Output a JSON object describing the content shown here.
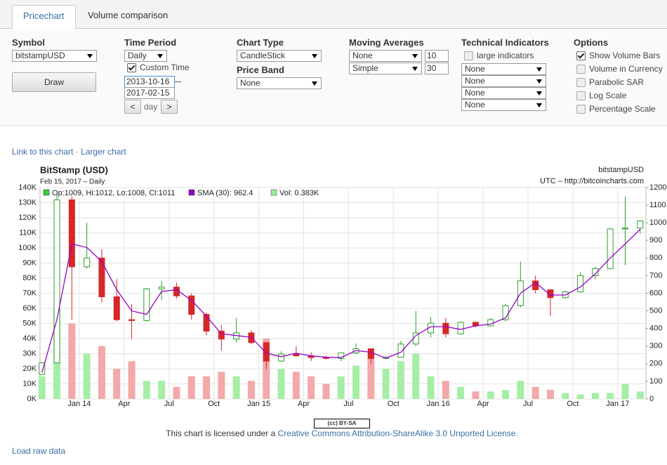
{
  "tabs": [
    "Pricechart",
    "Volume comparison"
  ],
  "form": {
    "symbol": {
      "label": "Symbol",
      "value": "bitstampUSD",
      "button": "Draw"
    },
    "time_period": {
      "label": "Time Period",
      "value": "Daily",
      "custom_time": {
        "label": "Custom Time",
        "checked": true
      },
      "start": "2013-10-16",
      "end": "2017-02-15",
      "step_prev": "<",
      "step_unit": "day",
      "step_next": ">"
    },
    "chart_type": {
      "label": "Chart Type",
      "value": "CandleStick",
      "price_band_label": "Price Band",
      "price_band": "None"
    },
    "moving_averages": {
      "label": "Moving Averages",
      "rows": [
        [
          "None",
          "10"
        ],
        [
          "Simple",
          "30"
        ]
      ]
    },
    "technical_indicators": {
      "label": "Technical Indicators",
      "large": {
        "label": "large indicators",
        "checked": false
      },
      "selects": [
        "None",
        "None",
        "None",
        "None"
      ]
    },
    "options": {
      "label": "Options",
      "items": [
        {
          "label": "Show Volume Bars",
          "checked": true
        },
        {
          "label": "Volume in Currency",
          "checked": false
        },
        {
          "label": "Parabolic SAR",
          "checked": false
        },
        {
          "label": "Log Scale",
          "checked": false
        },
        {
          "label": "Percentage Scale",
          "checked": false
        }
      ]
    }
  },
  "links": [
    "Link to this chart",
    "·",
    "Larger chart"
  ],
  "chart_data": {
    "type": "candlestick",
    "title": "BitStamp (USD)",
    "subtitle": "Feb 15, 2017 – Daily",
    "right_title": "bitstampUSD",
    "right_subtitle": "UTC – http://bitcoincharts.com",
    "legend": [
      {
        "label": "Op:1009, Hi:1012, Lo:1008, Cl:1011",
        "color": "#33cc33"
      },
      {
        "label": "SMA (30): 962.4",
        "color": "#9900cc"
      },
      {
        "label": "Vol: 0.383K",
        "color": "#99ee99"
      }
    ],
    "grid": true,
    "categories": [
      null,
      null,
      null,
      "Jan 14",
      null,
      null,
      "Apr",
      null,
      null,
      "Jul",
      null,
      null,
      "Oct",
      null,
      null,
      "Jan 15",
      null,
      null,
      "Apr",
      null,
      null,
      "Jul",
      null,
      null,
      "Oct",
      null,
      null,
      "Jan 16",
      null,
      null,
      "Apr",
      null,
      null,
      "Jul",
      null,
      null,
      "Oct",
      null,
      null,
      "Jan 17",
      null
    ],
    "price": {
      "axis": "y2",
      "up_color": "#2ca02c",
      "down_color": "#d62728",
      "open": [
        140,
        205,
        1130,
        750,
        800,
        580,
        450,
        445,
        625,
        635,
        585,
        480,
        385,
        340,
        375,
        320,
        215,
        255,
        245,
        235,
        230,
        262,
        285,
        230,
        236,
        312,
        375,
        430,
        370,
        435,
        415,
        450,
        530,
        670,
        620,
        575,
        608,
        700,
        740,
        965,
        970
      ],
      "high": [
        210,
        1163,
        1150,
        1000,
        850,
        680,
        540,
        630,
        670,
        660,
        600,
        490,
        420,
        460,
        390,
        320,
        270,
        300,
        265,
        245,
        265,
        315,
        285,
        245,
        330,
        500,
        465,
        460,
        440,
        440,
        460,
        540,
        780,
        700,
        620,
        615,
        720,
        750,
        970,
        1150,
        1015
      ],
      "low": [
        135,
        205,
        450,
        740,
        550,
        440,
        340,
        440,
        560,
        570,
        450,
        360,
        275,
        320,
        310,
        170,
        210,
        240,
        215,
        225,
        215,
        255,
        200,
        225,
        235,
        300,
        350,
        350,
        365,
        405,
        410,
        440,
        520,
        600,
        470,
        570,
        605,
        680,
        740,
        760,
        940
      ],
      "close": [
        205,
        1130,
        750,
        800,
        580,
        450,
        445,
        625,
        635,
        585,
        480,
        385,
        340,
        375,
        320,
        215,
        255,
        245,
        235,
        230,
        262,
        285,
        230,
        236,
        312,
        375,
        430,
        370,
        435,
        415,
        450,
        530,
        670,
        620,
        575,
        608,
        700,
        740,
        965,
        970,
        1011
      ]
    },
    "sma": {
      "axis": "y2",
      "color": "#9900cc",
      "values": [
        150,
        450,
        880,
        860,
        780,
        620,
        500,
        480,
        610,
        620,
        560,
        470,
        370,
        360,
        350,
        260,
        240,
        260,
        245,
        237,
        235,
        275,
        265,
        232,
        265,
        360,
        410,
        410,
        395,
        415,
        425,
        460,
        600,
        660,
        590,
        590,
        635,
        710,
        800,
        880,
        962.4
      ]
    },
    "volume": {
      "up_color": "#a6eea6",
      "down_color": "#f4a8a8",
      "values": [
        15000,
        60000,
        50000,
        30000,
        35000,
        20000,
        25000,
        12000,
        12000,
        8000,
        15000,
        15000,
        18000,
        15000,
        12000,
        40000,
        20000,
        18000,
        15000,
        10000,
        15000,
        22000,
        30000,
        20000,
        25000,
        30000,
        15000,
        12000,
        8000,
        5000,
        5000,
        6000,
        12000,
        8000,
        6000,
        4000,
        3000,
        4000,
        4000,
        10000,
        5000
      ]
    },
    "ylim": [
      0,
      140000
    ],
    "yticks": [
      {
        "value": 0,
        "label": "0K"
      },
      {
        "value": 10000,
        "label": "10K"
      },
      {
        "value": 20000,
        "label": "20K"
      },
      {
        "value": 30000,
        "label": "30K"
      },
      {
        "value": 40000,
        "label": "40K"
      },
      {
        "value": 50000,
        "label": "50K"
      },
      {
        "value": 60000,
        "label": "60K"
      },
      {
        "value": 70000,
        "label": "70K"
      },
      {
        "value": 80000,
        "label": "80K"
      },
      {
        "value": 90000,
        "label": "90K"
      },
      {
        "value": 100000,
        "label": "100K"
      },
      {
        "value": 110000,
        "label": "110K"
      },
      {
        "value": 120000,
        "label": "120K"
      },
      {
        "value": 130000,
        "label": "130K"
      },
      {
        "value": 140000,
        "label": "140K"
      }
    ],
    "y2lim": [
      0,
      1200
    ],
    "y2ticks": [
      0,
      100,
      200,
      300,
      400,
      500,
      600,
      700,
      800,
      900,
      1000,
      1100,
      1200
    ]
  },
  "footer": {
    "badge": "(cc) BY-SA",
    "license_prefix": "This chart is licensed under a",
    "license_link": "Creative Commons Attribution-ShareAlike 3.0 Unported License.",
    "raw": "Load raw data"
  }
}
